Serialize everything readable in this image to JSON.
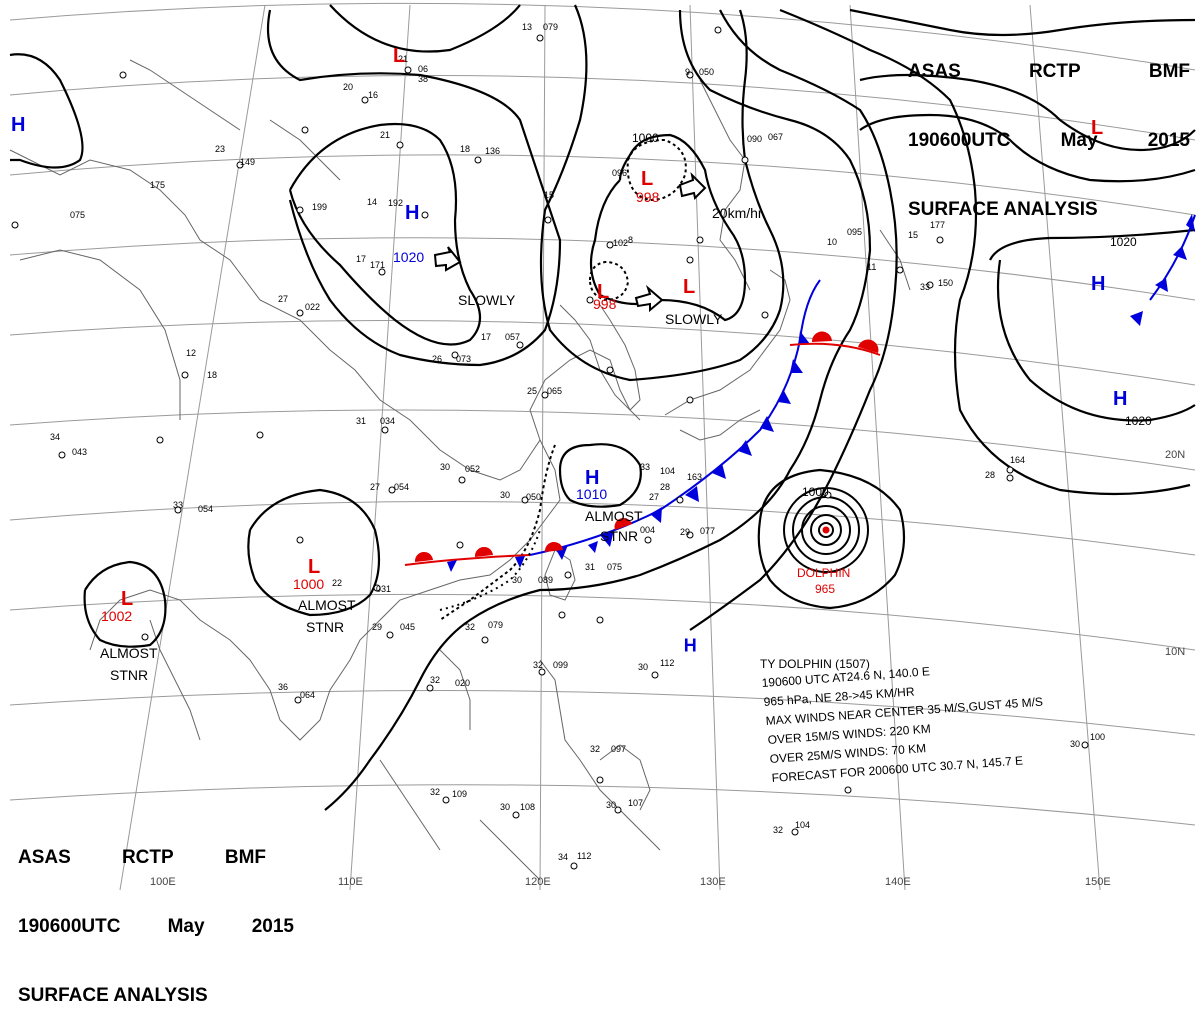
{
  "header": {
    "agency": "ASAS",
    "station": "RCTP",
    "bureau": "BMF",
    "datetime": "190600UTC",
    "month": "May",
    "year": "2015",
    "product": "SURFACE ANALYSIS"
  },
  "colors": {
    "low": "#e00000",
    "high": "#0000dd",
    "isobar": "#000000",
    "grid": "#999999",
    "coast": "#555555"
  },
  "pressure_centers": [
    {
      "type": "L",
      "value": ""
    },
    {
      "type": "L",
      "value": ""
    },
    {
      "type": "H",
      "value": ""
    },
    {
      "type": "H",
      "value": "1020"
    },
    {
      "type": "L",
      "value": "998"
    },
    {
      "type": "L",
      "value": "998"
    },
    {
      "type": "L",
      "value": ""
    },
    {
      "type": "H",
      "value": ""
    },
    {
      "type": "H",
      "value": ""
    },
    {
      "type": "H",
      "value": "1010"
    },
    {
      "type": "L",
      "value": "1000"
    },
    {
      "type": "L",
      "value": "1002"
    },
    {
      "type": "H",
      "value": ""
    }
  ],
  "isobar_labels": [
    "1000",
    "1020",
    "1020",
    "1000"
  ],
  "motion_labels": {
    "h1020": "SLOWLY",
    "l998": "SLOWLY",
    "l998_north": "20km/hr",
    "h1010_a": "ALMOST",
    "h1010_b": "STNR",
    "l1000_a": "ALMOST",
    "l1000_b": "STNR",
    "l1002_a": "ALMOST",
    "l1002_b": "STNR"
  },
  "typhoon": {
    "name": "DOLPHIN",
    "pressure": "965",
    "info": {
      "line1": "TY  DOLPHIN  (1507)",
      "line2": "190600 UTC  AT24.6 N, 140.0 E",
      "line3": "965 hPa, NE  28->45 KM/HR",
      "line4": "MAX WINDS NEAR CENTER 35 M/S,GUST 45 M/S",
      "line5": "OVER 15M/S WINDS: 220 KM",
      "line6": "OVER 25M/S WINDS: 70 KM",
      "line7": "FORECAST FOR 200600 UTC 30.7 N, 145.7 E"
    }
  },
  "longitude_labels": [
    "100E",
    "110E",
    "120E",
    "130E",
    "140E",
    "150E"
  ],
  "latitude_labels": [
    "20N",
    "10N"
  ],
  "station_numbers": [
    "13",
    "079",
    "21",
    "06",
    "38",
    "20",
    "16",
    "21",
    "23",
    "149",
    "18",
    "136",
    "14",
    "192",
    "199",
    "17",
    "171",
    "175",
    "075",
    "27",
    "022",
    "26",
    "073",
    "17",
    "057",
    "25",
    "065",
    "12",
    "18",
    "31",
    "034",
    "30",
    "052",
    "27",
    "054",
    "28",
    "163",
    "33",
    "054",
    "34",
    "043",
    "27",
    "004",
    "29",
    "077",
    "30",
    "050",
    "30",
    "089",
    "31",
    "075",
    "22",
    "031",
    "29",
    "045",
    "32",
    "020",
    "32",
    "079",
    "36",
    "064",
    "30",
    "112",
    "32",
    "099",
    "32",
    "109",
    "30",
    "108",
    "32",
    "104",
    "30",
    "107",
    "33",
    "104",
    "34",
    "112",
    "32",
    "097",
    "30",
    "100",
    "28",
    "164",
    "15",
    "177",
    "33",
    "150",
    "10",
    "095",
    "9",
    "050",
    "11",
    "090",
    "067",
    "15",
    "102",
    "8",
    "096"
  ]
}
